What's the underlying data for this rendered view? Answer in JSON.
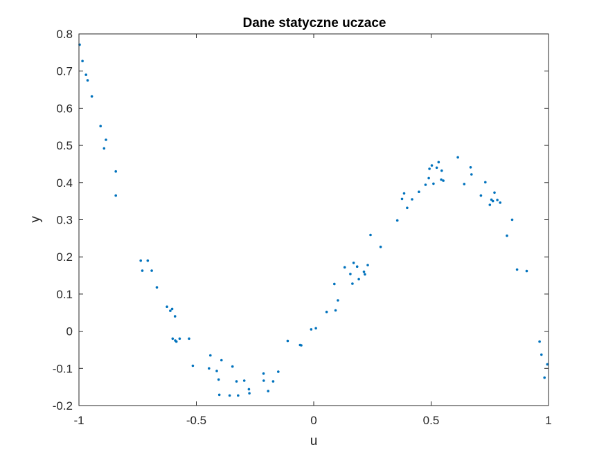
{
  "chart_data": {
    "type": "scatter",
    "title": "Dane statyczne uczace",
    "xlabel": "u",
    "ylabel": "y",
    "xlim": [
      -1,
      1
    ],
    "ylim": [
      -0.2,
      0.8
    ],
    "xticks": [
      -1,
      -0.5,
      0,
      0.5,
      1
    ],
    "xtick_labels": [
      "-1",
      "-0.5",
      "0",
      "0.5",
      "1"
    ],
    "yticks": [
      -0.2,
      -0.1,
      0,
      0.1,
      0.2,
      0.3,
      0.4,
      0.5,
      0.6,
      0.7,
      0.8
    ],
    "ytick_labels": [
      "-0.2",
      "-0.1",
      "0",
      "0.1",
      "0.2",
      "0.3",
      "0.4",
      "0.5",
      "0.6",
      "0.7",
      "0.8"
    ],
    "grid": false,
    "marker_color": "#0072BD",
    "points": [
      [
        -0.997,
        0.771
      ],
      [
        -0.985,
        0.727
      ],
      [
        -0.97,
        0.69
      ],
      [
        -0.963,
        0.675
      ],
      [
        -0.945,
        0.632
      ],
      [
        -0.908,
        0.552
      ],
      [
        -0.893,
        0.492
      ],
      [
        -0.885,
        0.515
      ],
      [
        -0.843,
        0.43
      ],
      [
        -0.843,
        0.365
      ],
      [
        -0.737,
        0.19
      ],
      [
        -0.73,
        0.163
      ],
      [
        -0.707,
        0.19
      ],
      [
        -0.69,
        0.163
      ],
      [
        -0.668,
        0.118
      ],
      [
        -0.625,
        0.066
      ],
      [
        -0.611,
        0.055
      ],
      [
        -0.603,
        0.06
      ],
      [
        -0.591,
        0.04
      ],
      [
        -0.601,
        -0.02
      ],
      [
        -0.59,
        -0.025
      ],
      [
        -0.585,
        -0.028
      ],
      [
        -0.571,
        -0.02
      ],
      [
        -0.531,
        -0.02
      ],
      [
        -0.515,
        -0.093
      ],
      [
        -0.446,
        -0.1
      ],
      [
        -0.44,
        -0.065
      ],
      [
        -0.413,
        -0.107
      ],
      [
        -0.405,
        -0.13
      ],
      [
        -0.393,
        -0.078
      ],
      [
        -0.402,
        -0.171
      ],
      [
        -0.358,
        -0.173
      ],
      [
        -0.346,
        -0.095
      ],
      [
        -0.329,
        -0.135
      ],
      [
        -0.322,
        -0.173
      ],
      [
        -0.296,
        -0.133
      ],
      [
        -0.276,
        -0.156
      ],
      [
        -0.274,
        -0.167
      ],
      [
        -0.214,
        -0.114
      ],
      [
        -0.213,
        -0.133
      ],
      [
        -0.194,
        -0.161
      ],
      [
        -0.173,
        -0.135
      ],
      [
        -0.151,
        -0.109
      ],
      [
        -0.111,
        -0.026
      ],
      [
        -0.058,
        -0.037
      ],
      [
        -0.053,
        -0.038
      ],
      [
        -0.011,
        0.005
      ],
      [
        0.009,
        0.008
      ],
      [
        0.055,
        0.052
      ],
      [
        0.088,
        0.127
      ],
      [
        0.093,
        0.056
      ],
      [
        0.103,
        0.083
      ],
      [
        0.132,
        0.172
      ],
      [
        0.156,
        0.154
      ],
      [
        0.165,
        0.128
      ],
      [
        0.17,
        0.184
      ],
      [
        0.185,
        0.174
      ],
      [
        0.192,
        0.14
      ],
      [
        0.214,
        0.16
      ],
      [
        0.218,
        0.153
      ],
      [
        0.23,
        0.178
      ],
      [
        0.242,
        0.259
      ],
      [
        0.285,
        0.227
      ],
      [
        0.356,
        0.298
      ],
      [
        0.376,
        0.356
      ],
      [
        0.385,
        0.371
      ],
      [
        0.398,
        0.332
      ],
      [
        0.419,
        0.355
      ],
      [
        0.448,
        0.375
      ],
      [
        0.476,
        0.394
      ],
      [
        0.49,
        0.412
      ],
      [
        0.493,
        0.437
      ],
      [
        0.503,
        0.446
      ],
      [
        0.51,
        0.397
      ],
      [
        0.524,
        0.44
      ],
      [
        0.532,
        0.455
      ],
      [
        0.543,
        0.408
      ],
      [
        0.545,
        0.432
      ],
      [
        0.552,
        0.405
      ],
      [
        0.614,
        0.468
      ],
      [
        0.641,
        0.396
      ],
      [
        0.668,
        0.441
      ],
      [
        0.672,
        0.422
      ],
      [
        0.712,
        0.365
      ],
      [
        0.731,
        0.401
      ],
      [
        0.75,
        0.34
      ],
      [
        0.757,
        0.354
      ],
      [
        0.763,
        0.35
      ],
      [
        0.77,
        0.373
      ],
      [
        0.782,
        0.353
      ],
      [
        0.794,
        0.346
      ],
      [
        0.823,
        0.257
      ],
      [
        0.845,
        0.3
      ],
      [
        0.866,
        0.166
      ],
      [
        0.907,
        0.162
      ],
      [
        0.962,
        -0.028
      ],
      [
        0.97,
        -0.063
      ],
      [
        0.983,
        -0.125
      ],
      [
        0.995,
        -0.089
      ]
    ]
  }
}
